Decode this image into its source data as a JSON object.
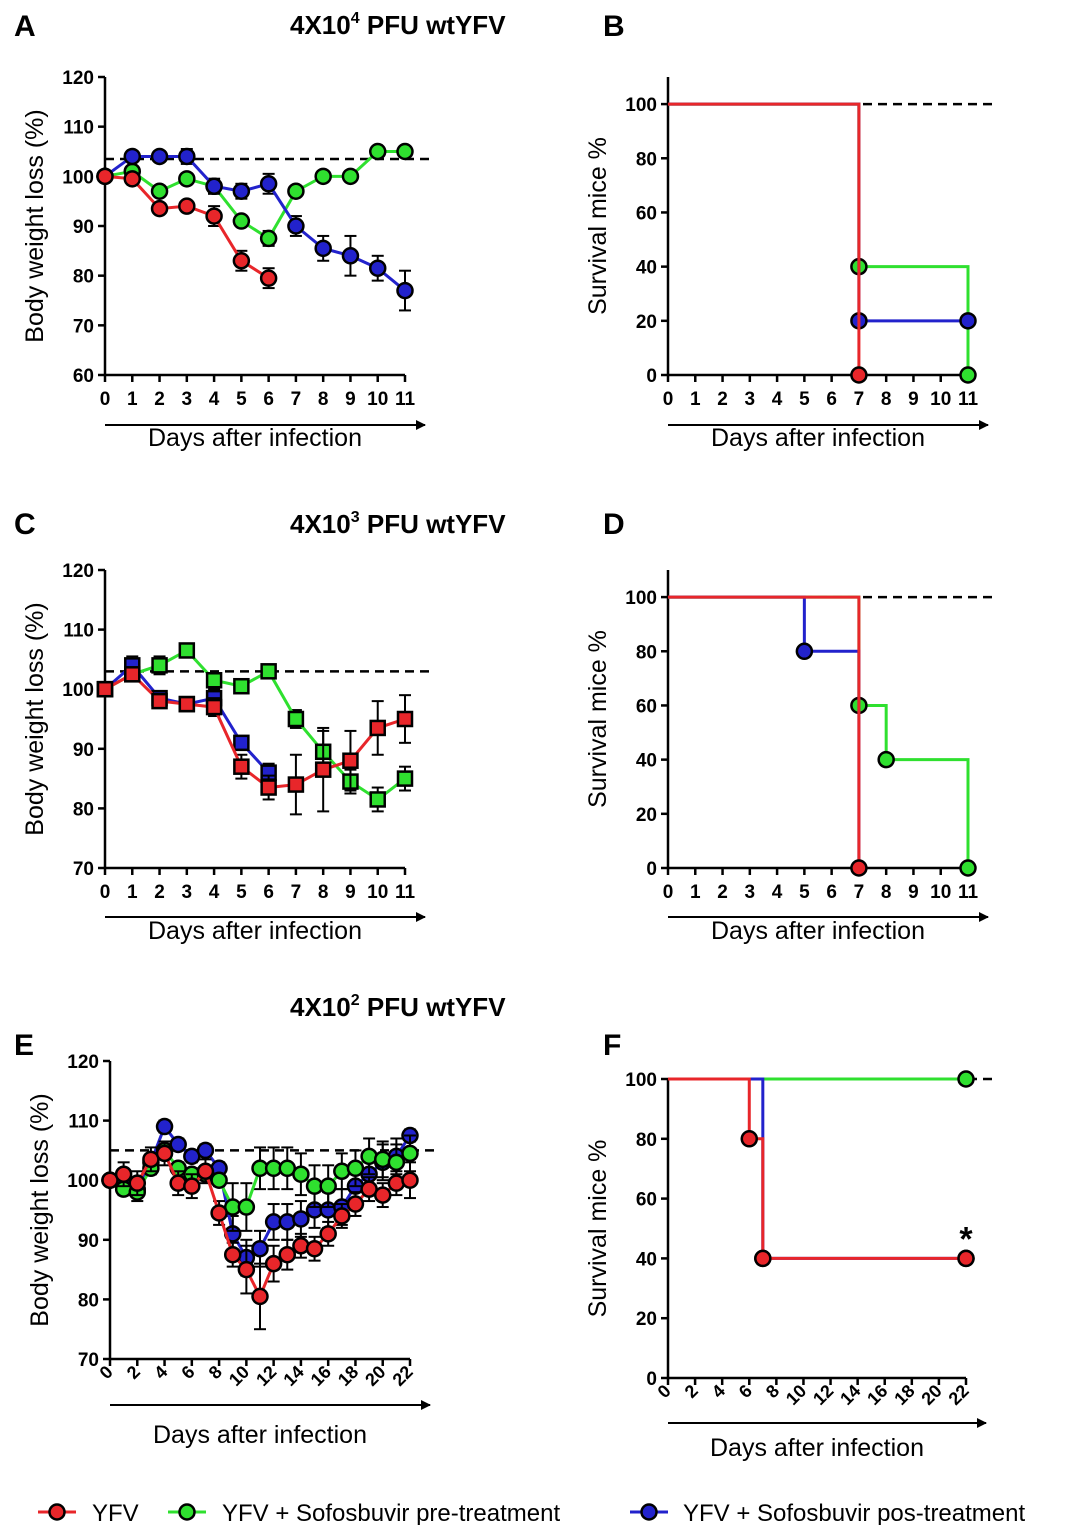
{
  "colors": {
    "yfv": "#e8262a",
    "pre": "#2fe02f",
    "pos": "#2222cc",
    "black": "#000000"
  },
  "headers": [
    "4X10",
    "4X10",
    "4X10"
  ],
  "header_superscripts": [
    "4",
    "3",
    "2"
  ],
  "header_suffix": " PFU wtYFV",
  "legend": [
    {
      "key": "yfv",
      "label": "YFV"
    },
    {
      "key": "pre",
      "label": "YFV + Sofosbuvir pre-treatment"
    },
    {
      "key": "pos",
      "label": "YFV + Sofosbuvir pos-treatment"
    }
  ],
  "chart_data": [
    {
      "panel": "A",
      "type": "line",
      "marker": "circle",
      "xlabel": "Days after infection",
      "ylabel": "Body weight loss (%)",
      "xlim": [
        0,
        11
      ],
      "ylim": [
        60,
        120
      ],
      "xticks": [
        0,
        1,
        2,
        3,
        4,
        5,
        6,
        7,
        8,
        9,
        10,
        11
      ],
      "xtick_labels": [
        "0",
        "1",
        "2",
        "3",
        "4",
        "5",
        "6",
        "7",
        "8",
        "9",
        "10",
        "11"
      ],
      "yticks": [
        60,
        70,
        80,
        90,
        100,
        110,
        120
      ],
      "reference_line": 103.5,
      "series": [
        {
          "key": "pre",
          "x": [
            0,
            1,
            2,
            3,
            4,
            5,
            6,
            7,
            8,
            9,
            10,
            11
          ],
          "y": [
            100,
            101,
            97,
            99.5,
            98,
            91,
            87.5,
            97,
            100,
            100,
            105,
            105
          ],
          "err": [
            0,
            0,
            0,
            0,
            1.5,
            0,
            1.5,
            0,
            0,
            0,
            0,
            0
          ]
        },
        {
          "key": "pos",
          "x": [
            0,
            1,
            2,
            3,
            4,
            5,
            6,
            7,
            8,
            9,
            10,
            11
          ],
          "y": [
            100,
            104,
            104,
            104,
            98,
            97,
            98.5,
            90,
            85.5,
            84,
            81.5,
            77
          ],
          "err": [
            0,
            1,
            1,
            1.5,
            1.5,
            1.5,
            2,
            2,
            2.5,
            4,
            2.5,
            4
          ]
        },
        {
          "key": "yfv",
          "x": [
            0,
            1,
            2,
            3,
            4,
            5,
            6
          ],
          "y": [
            100,
            99.5,
            93.5,
            94,
            92,
            83,
            79.5
          ],
          "err": [
            0,
            1,
            1,
            1,
            2,
            2,
            2
          ]
        }
      ]
    },
    {
      "panel": "B",
      "type": "line",
      "step": true,
      "marker": "circle",
      "xlabel": "Days after infection",
      "ylabel": "Survival mice %",
      "xlim": [
        0,
        11
      ],
      "ylim": [
        0,
        110
      ],
      "xticks": [
        0,
        1,
        2,
        3,
        4,
        5,
        6,
        7,
        8,
        9,
        10,
        11
      ],
      "xtick_labels": [
        "0",
        "1",
        "2",
        "3",
        "4",
        "5",
        "6",
        "7",
        "8",
        "9",
        "10",
        "11"
      ],
      "yticks": [
        0,
        20,
        40,
        60,
        80,
        100
      ],
      "reference_line": 100,
      "series": [
        {
          "key": "pre",
          "x": [
            0,
            7,
            11
          ],
          "y": [
            100,
            40,
            0
          ],
          "markers_x": [
            7,
            11
          ],
          "markers_y": [
            40,
            0
          ]
        },
        {
          "key": "pos",
          "x": [
            0,
            7,
            11
          ],
          "y": [
            100,
            20,
            20
          ],
          "markers_x": [
            7,
            11
          ],
          "markers_y": [
            20,
            20
          ]
        },
        {
          "key": "yfv",
          "x": [
            0,
            7
          ],
          "y": [
            100,
            0
          ],
          "markers_x": [
            7
          ],
          "markers_y": [
            0
          ]
        }
      ]
    },
    {
      "panel": "C",
      "type": "line",
      "marker": "square",
      "xlabel": "Days after infection",
      "ylabel": "Body weight loss (%)",
      "xlim": [
        0,
        11
      ],
      "ylim": [
        70,
        120
      ],
      "xticks": [
        0,
        1,
        2,
        3,
        4,
        5,
        6,
        7,
        8,
        9,
        10,
        11
      ],
      "xtick_labels": [
        "0",
        "1",
        "2",
        "3",
        "4",
        "5",
        "6",
        "7",
        "8",
        "9",
        "10",
        "11"
      ],
      "yticks": [
        70,
        80,
        90,
        100,
        110,
        120
      ],
      "reference_line": 103,
      "series": [
        {
          "key": "pre",
          "x": [
            0,
            1,
            2,
            3,
            4,
            5,
            6,
            7,
            8,
            9,
            10,
            11
          ],
          "y": [
            100,
            102.5,
            104,
            106.5,
            101.5,
            100.5,
            103,
            95,
            89.5,
            84.5,
            81.5,
            85
          ],
          "err": [
            0,
            1,
            1.5,
            1,
            1,
            1,
            1,
            1.5,
            3.5,
            2,
            2,
            2
          ]
        },
        {
          "key": "pos",
          "x": [
            0,
            1,
            2,
            3,
            4,
            5,
            6
          ],
          "y": [
            100,
            104,
            98.5,
            97.5,
            98.5,
            91,
            86
          ],
          "err": [
            0,
            1.5,
            1,
            1,
            1.5,
            1,
            1.5
          ]
        },
        {
          "key": "yfv",
          "x": [
            0,
            1,
            2,
            3,
            4,
            5,
            6,
            7,
            8,
            9,
            10,
            11
          ],
          "y": [
            100,
            102.5,
            98,
            97.5,
            97,
            87,
            83.5,
            84,
            86.5,
            88,
            93.5,
            95
          ],
          "err": [
            0,
            1,
            1,
            1,
            1.5,
            2,
            2,
            5,
            7,
            5,
            4.5,
            4
          ]
        }
      ]
    },
    {
      "panel": "D",
      "type": "line",
      "step": true,
      "marker": "circle",
      "xlabel": "Days after infection",
      "ylabel": "Survival mice %",
      "xlim": [
        0,
        11
      ],
      "ylim": [
        0,
        110
      ],
      "xticks": [
        0,
        1,
        2,
        3,
        4,
        5,
        6,
        7,
        8,
        9,
        10,
        11
      ],
      "xtick_labels": [
        "0",
        "1",
        "2",
        "3",
        "4",
        "5",
        "6",
        "7",
        "8",
        "9",
        "10",
        "11"
      ],
      "yticks": [
        0,
        20,
        40,
        60,
        80,
        100
      ],
      "reference_line": 100,
      "series": [
        {
          "key": "pre",
          "x": [
            0,
            7,
            8,
            11
          ],
          "y": [
            100,
            60,
            40,
            0
          ],
          "markers_x": [
            7,
            8,
            11
          ],
          "markers_y": [
            60,
            40,
            0
          ]
        },
        {
          "key": "pos",
          "x": [
            0,
            5,
            7
          ],
          "y": [
            100,
            80,
            0
          ],
          "markers_x": [
            5
          ],
          "markers_y": [
            80
          ]
        },
        {
          "key": "yfv",
          "x": [
            0,
            7
          ],
          "y": [
            100,
            0
          ],
          "markers_x": [
            7
          ],
          "markers_y": [
            0
          ]
        }
      ]
    },
    {
      "panel": "E",
      "type": "line",
      "marker": "circle",
      "xlabel": "Days after infection",
      "ylabel": "Body weight loss (%)",
      "xlim": [
        0,
        22
      ],
      "ylim": [
        70,
        120
      ],
      "xticks": [
        0,
        2,
        4,
        6,
        8,
        10,
        12,
        14,
        16,
        18,
        20,
        22
      ],
      "xtick_labels": [
        "0",
        "2",
        "4",
        "6",
        "8",
        "10",
        "12",
        "14",
        "16",
        "18",
        "20",
        "22"
      ],
      "yticks": [
        70,
        80,
        90,
        100,
        110,
        120
      ],
      "reference_line": 105,
      "series": [
        {
          "key": "pos",
          "x": [
            0,
            1,
            2,
            3,
            4,
            5,
            6,
            7,
            8,
            9,
            10,
            11,
            12,
            13,
            14,
            15,
            16,
            17,
            18,
            19,
            20,
            21,
            22
          ],
          "y": [
            100,
            100,
            98.5,
            103,
            109,
            106,
            104,
            105,
            102,
            91,
            87,
            88.5,
            93,
            93,
            93.5,
            95,
            95,
            95.5,
            99,
            101,
            103,
            104,
            107.5
          ],
          "err": [
            0,
            1,
            1,
            1,
            1,
            1,
            1,
            1,
            1,
            3,
            3,
            3,
            3,
            3,
            3,
            3,
            3,
            3,
            3,
            3,
            3,
            3,
            1
          ]
        },
        {
          "key": "pre",
          "x": [
            0,
            1,
            2,
            3,
            4,
            5,
            6,
            7,
            8,
            9,
            10,
            11,
            12,
            13,
            14,
            15,
            16,
            17,
            18,
            19,
            20,
            21,
            22
          ],
          "y": [
            100,
            98.5,
            98,
            102,
            105,
            102,
            101,
            101,
            100,
            95.5,
            95.5,
            102,
            102,
            102,
            101,
            99,
            99,
            101.5,
            102,
            104,
            103.5,
            103,
            104.5
          ],
          "err": [
            0,
            1,
            1.5,
            1,
            1,
            1,
            1,
            1,
            1,
            4,
            4,
            3.5,
            3.5,
            3.5,
            3.5,
            3.5,
            3.5,
            3,
            3,
            3,
            3,
            3,
            3
          ]
        },
        {
          "key": "yfv",
          "x": [
            0,
            1,
            2,
            3,
            4,
            5,
            6,
            7,
            8,
            9,
            10,
            11,
            12,
            13,
            14,
            15,
            16,
            17,
            18,
            19,
            20,
            21,
            22
          ],
          "y": [
            100,
            101,
            99.5,
            103.5,
            104.5,
            99.5,
            99,
            101.5,
            94.5,
            87.5,
            85,
            80.5,
            86,
            87.5,
            89,
            88.5,
            91,
            94,
            96,
            98.5,
            97.5,
            99.5,
            100
          ],
          "err": [
            0,
            2,
            2,
            2,
            2,
            2,
            2,
            2,
            2,
            2,
            4,
            5.5,
            3,
            2.5,
            2,
            2,
            2,
            2,
            2,
            2,
            2,
            2,
            3
          ]
        }
      ]
    },
    {
      "panel": "F",
      "type": "line",
      "step": true,
      "marker": "circle",
      "xlabel": "Days after infection",
      "ylabel": "Survival mice %",
      "xlim": [
        0,
        22
      ],
      "ylim": [
        0,
        100
      ],
      "xticks": [
        0,
        2,
        4,
        6,
        8,
        10,
        12,
        14,
        16,
        18,
        20,
        22
      ],
      "xtick_labels": [
        "0",
        "2",
        "4",
        "6",
        "8",
        "10",
        "12",
        "14",
        "16",
        "18",
        "20",
        "22"
      ],
      "yticks": [
        0,
        20,
        40,
        60,
        80,
        100
      ],
      "reference_line": 100,
      "annotation": "*",
      "series": [
        {
          "key": "pre",
          "x": [
            0,
            22
          ],
          "y": [
            100,
            100
          ],
          "markers_x": [
            22
          ],
          "markers_y": [
            100
          ]
        },
        {
          "key": "pos",
          "x": [
            0,
            7,
            22
          ],
          "y": [
            100,
            40,
            40
          ],
          "markers_x": [
            7,
            22
          ],
          "markers_y": [
            40,
            40
          ]
        },
        {
          "key": "yfv",
          "x": [
            0,
            6,
            7,
            22
          ],
          "y": [
            100,
            80,
            40,
            40
          ],
          "markers_x": [
            6,
            7,
            22
          ],
          "markers_y": [
            80,
            40,
            40
          ]
        }
      ]
    }
  ]
}
